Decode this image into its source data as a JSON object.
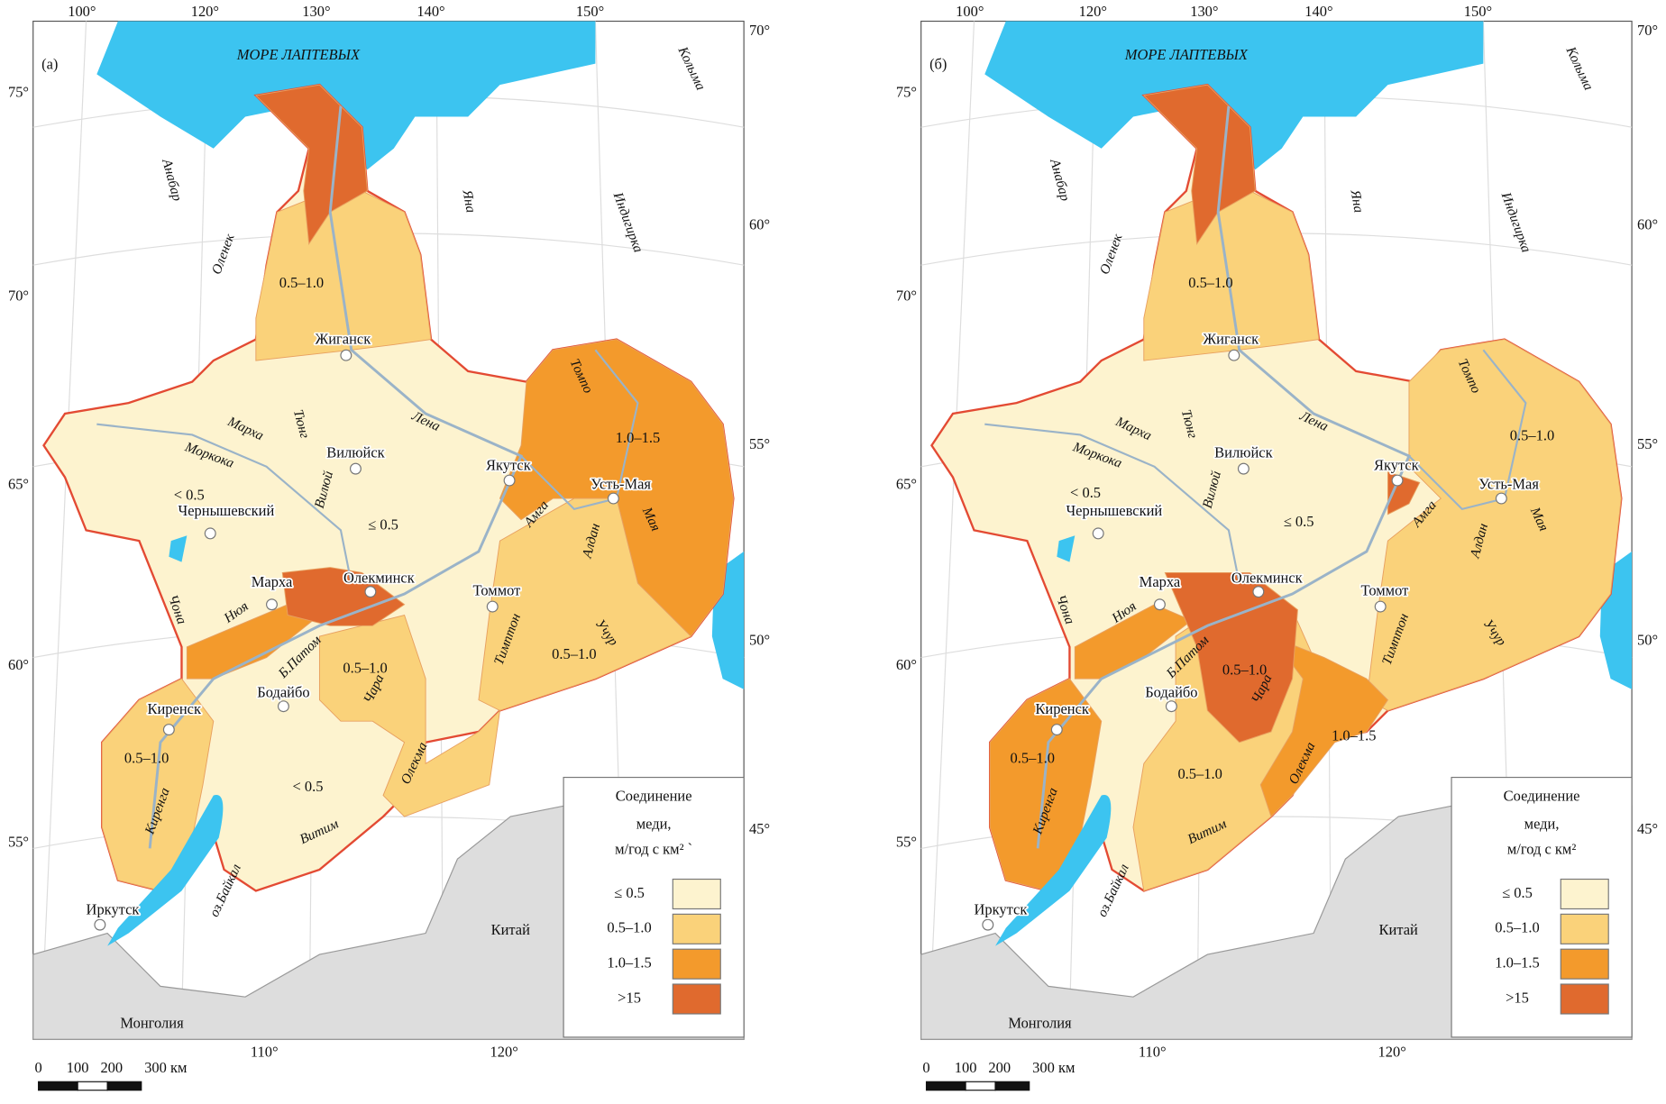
{
  "common": {
    "sea": "МОРЕ ЛАПТЕВЫХ",
    "top_lon": [
      "100°",
      "120°",
      "130°",
      "140°",
      "150°"
    ],
    "right_lat": [
      "70°",
      "60°",
      "55°",
      "50°",
      "45°"
    ],
    "left_lat": [
      "75°",
      "70°",
      "65°",
      "60°",
      "55°"
    ],
    "bottom_lon": [
      "110°",
      "120°"
    ],
    "rivers": [
      "Анабар",
      "Оленек",
      "Яна",
      "Индигирка",
      "Колыма",
      "Лена",
      "Марха",
      "Тюнг",
      "Моркока",
      "Вилюй",
      "Чона",
      "Нюя",
      "Б.Патом",
      "Чара",
      "Олекма",
      "Витим",
      "Киренга",
      "Амга",
      "Алдан",
      "Учур",
      "Тимптон",
      "Томпо",
      "Мая",
      "оз.Байкал"
    ],
    "cities": [
      "Жиганск",
      "Вилюйск",
      "Якутск",
      "Усть-Мая",
      "Чернышевский",
      "Марха",
      "Олекминск",
      "Томмот",
      "Бодайбо",
      "Киренск",
      "Иркутск"
    ],
    "countries": [
      "Китай",
      "Монголия"
    ],
    "scale": [
      "0",
      "100",
      "200",
      "300 км"
    ]
  },
  "legend": {
    "items": [
      {
        "label": "≤ 0.5",
        "color": "#fdf3cf"
      },
      {
        "label": "0.5–1.0",
        "color": "#fad27a"
      },
      {
        "label": "1.0–1.5",
        "color": "#f39a2c"
      },
      {
        "label": ">15",
        "color": "#e06a2e"
      }
    ]
  },
  "panels": [
    {
      "label": "(а)",
      "legend_title": [
        "Соединение",
        "меди,",
        "м/год с км² `"
      ],
      "zones": [
        "0.5–1.0",
        "1.0–1.5",
        "< 0.5",
        "≤ 0.5",
        "0.5–1.0",
        "0.5–1.0",
        "0.5–1.0",
        "< 0.5"
      ]
    },
    {
      "label": "(б)",
      "legend_title": [
        "Соединение",
        "меди,",
        "м/год с км²"
      ],
      "zones": [
        "0.5–1.0",
        "0.5–1.0",
        "< 0.5",
        "≤ 0.5",
        "0.5–1.0",
        "1.0–1.5",
        "0.5–1.0",
        "0.5–1.0"
      ]
    }
  ]
}
